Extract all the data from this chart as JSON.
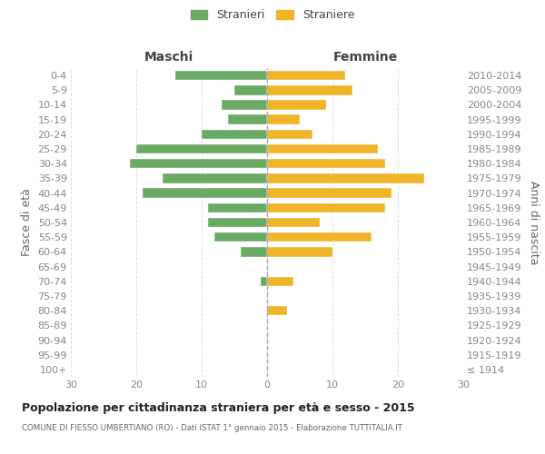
{
  "age_groups": [
    "100+",
    "95-99",
    "90-94",
    "85-89",
    "80-84",
    "75-79",
    "70-74",
    "65-69",
    "60-64",
    "55-59",
    "50-54",
    "45-49",
    "40-44",
    "35-39",
    "30-34",
    "25-29",
    "20-24",
    "15-19",
    "10-14",
    "5-9",
    "0-4"
  ],
  "birth_years": [
    "≤ 1914",
    "1915-1919",
    "1920-1924",
    "1925-1929",
    "1930-1934",
    "1935-1939",
    "1940-1944",
    "1945-1949",
    "1950-1954",
    "1955-1959",
    "1960-1964",
    "1965-1969",
    "1970-1974",
    "1975-1979",
    "1980-1984",
    "1985-1989",
    "1990-1994",
    "1995-1999",
    "2000-2004",
    "2005-2009",
    "2010-2014"
  ],
  "males": [
    0,
    0,
    0,
    0,
    0,
    0,
    1,
    0,
    4,
    8,
    9,
    9,
    19,
    16,
    21,
    20,
    10,
    6,
    7,
    5,
    14
  ],
  "females": [
    0,
    0,
    0,
    0,
    3,
    0,
    4,
    0,
    10,
    16,
    8,
    18,
    19,
    24,
    18,
    17,
    7,
    5,
    9,
    13,
    12
  ],
  "male_color": "#6aaa64",
  "female_color": "#f0b429",
  "background_color": "#ffffff",
  "grid_color": "#dddddd",
  "title": "Popolazione per cittadinanza straniera per età e sesso - 2015",
  "subtitle": "COMUNE DI FIESSO UMBERTIANO (RO) - Dati ISTAT 1° gennaio 2015 - Elaborazione TUTTITALIA.IT",
  "legend_stranieri": "Stranieri",
  "legend_straniere": "Straniere",
  "xlabel_left": "Maschi",
  "xlabel_right": "Femmine",
  "ylabel_left": "Fasce di età",
  "ylabel_right": "Anni di nascita",
  "xlim": 30
}
